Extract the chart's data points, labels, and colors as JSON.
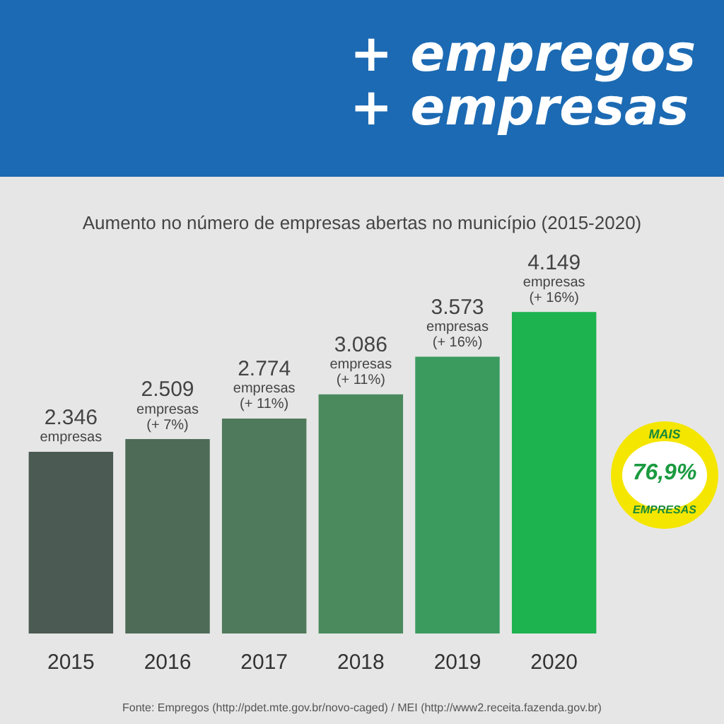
{
  "chart_data": {
    "type": "bar",
    "title": "+ empregos\n+ empresas",
    "subtitle": "Aumento no número de empresas abertas no município (2015-2020)",
    "categories": [
      "2015",
      "2016",
      "2017",
      "2018",
      "2019",
      "2020"
    ],
    "values": [
      2346,
      2509,
      2774,
      3086,
      3573,
      4149
    ],
    "colors": [
      "#4b5a52",
      "#4e6b57",
      "#4f7a5b",
      "#4a8a5d",
      "#3b9b5f",
      "#1db34f"
    ],
    "value_labels": [
      "2.346\nempresas",
      "2.509\nempresas\n(+ 7%)",
      "2.774\nempresas\n(+ 11%)",
      "3.086\nempresas\n(+ 11%)",
      "3.573\nempresas\n(+ 16%)",
      "4.149\nempresas\n(+ 16%)"
    ],
    "annotations": [
      "MAIS",
      "76,9%",
      "EMPRESAS",
      "Fonte: Empregos (http://pdet.mte.gov.br/novo-caged) / MEI (http://www2.receita.fazenda.gov.br)"
    ],
    "grid": false,
    "legend": false
  }
}
